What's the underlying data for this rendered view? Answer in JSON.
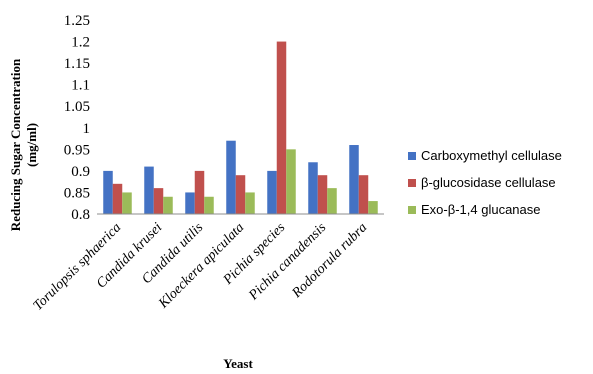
{
  "chart_data": {
    "type": "bar",
    "title": "",
    "xlabel": "Yeast",
    "ylabel": "Reducing Sugar Concentration (mg/ml)",
    "ylabel_lines": [
      "Reducing Sugar Concentration",
      "(mg/ml)"
    ],
    "ylim": [
      0.8,
      1.25
    ],
    "yticks": [
      "0.8",
      "0.85",
      "0.9",
      "0.95",
      "1",
      "1.05",
      "1.1",
      "1.15",
      "1.2",
      "1.25"
    ],
    "categories": [
      "Torulopsis sphaerica",
      "Candida krusei",
      "Candida utilis",
      "Kloeckera apiculata",
      "Pichia species",
      "Pichia canadensis",
      "Rodotorula rubra"
    ],
    "series": [
      {
        "name": "Carboxymethyl cellulase",
        "color": "#4472C4",
        "values": [
          0.9,
          0.91,
          0.85,
          0.97,
          0.9,
          0.92,
          0.96
        ]
      },
      {
        "name": "β-glucosidase cellulase",
        "color": "#C0504D",
        "values": [
          0.87,
          0.86,
          0.9,
          0.89,
          1.2,
          0.89,
          0.89
        ]
      },
      {
        "name": "Exo-β-1,4 glucanase",
        "color": "#9BBB59",
        "values": [
          0.85,
          0.84,
          0.84,
          0.85,
          0.95,
          0.86,
          0.83
        ]
      }
    ],
    "legend_position": "right",
    "grid": false
  }
}
